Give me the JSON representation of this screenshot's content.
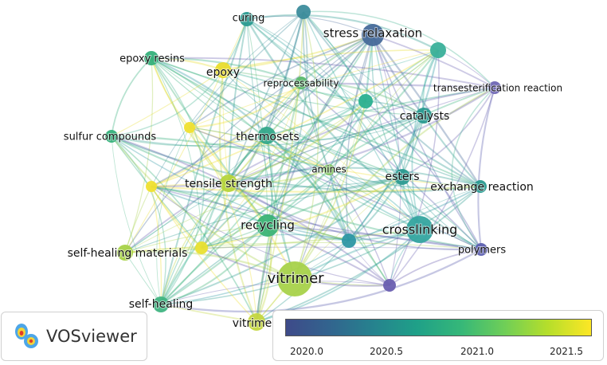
{
  "nodes": [
    {
      "label": "stress relaxation"
    },
    {
      "label": "curing"
    },
    {
      "label": "epoxy resins"
    },
    {
      "label": "epoxy"
    },
    {
      "label": "reprocessability"
    },
    {
      "label": "transesterification reaction"
    },
    {
      "label": "catalysts"
    },
    {
      "label": "sulfur compounds"
    },
    {
      "label": "thermosets"
    },
    {
      "label": "amines"
    },
    {
      "label": "esters"
    },
    {
      "label": "tensile strength"
    },
    {
      "label": "exchange reaction"
    },
    {
      "label": "recycling"
    },
    {
      "label": "crosslinking"
    },
    {
      "label": "self-healing materials"
    },
    {
      "label": "polymers"
    },
    {
      "label": "vitrimer"
    },
    {
      "label": "self-healing"
    },
    {
      "label": "vitrimers"
    }
  ],
  "logo": {
    "text": "VOSviewer"
  },
  "color_scale": {
    "colors": [
      "#3e4a89",
      "#26828e",
      "#35b779",
      "#b5de2b",
      "#fde725"
    ],
    "ticks": [
      "2020.0",
      "2020.5",
      "2021.0",
      "2021.5"
    ]
  }
}
